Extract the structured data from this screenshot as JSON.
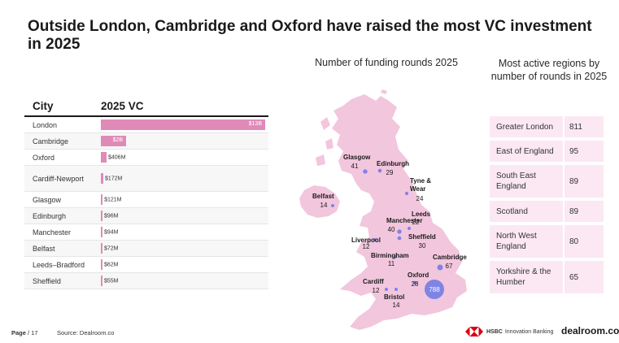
{
  "title": "Outside London, Cambridge and Oxford have raised the most VC investment in 2025",
  "table": {
    "col_city": "City",
    "col_vc": "2025 VC"
  },
  "map_title": "Number of funding rounds 2025",
  "regions_title": "Most active regions by number of rounds in 2025",
  "regions": [
    {
      "name": "Greater London",
      "value": "811"
    },
    {
      "name": "East of England",
      "value": "95"
    },
    {
      "name": "South East England",
      "value": "89"
    },
    {
      "name": "Scotland",
      "value": "89"
    },
    {
      "name": "North West England",
      "value": "80"
    },
    {
      "name": "Yorkshire & the Humber",
      "value": "65"
    }
  ],
  "footer": {
    "page_label": "Page",
    "page_num": "/ 17",
    "source": "Source:  Dealroom.co",
    "hsbc_name": "HSBC",
    "hsbc_sub": "Innovation Banking",
    "brand": "dealroom.co"
  },
  "colors": {
    "bar": "#e08ab8",
    "map_land": "#f2c6dd",
    "bubble": "#6b78e5",
    "region_bg": "#fbe8f3"
  },
  "chart_data": [
    {
      "type": "bar",
      "categories": [
        "London",
        "Cambridge",
        "Oxford",
        "Cardiff-Newport",
        "Glasgow",
        "Edinburgh",
        "Manchester",
        "Belfast",
        "Leeds–Bradford",
        "Sheffield"
      ],
      "values": [
        13000,
        2000,
        406,
        172,
        121,
        96,
        94,
        72,
        62,
        55
      ],
      "labels": [
        "$13B",
        "$2B",
        "$406M",
        "$172M",
        "$121M",
        "$96M",
        "$94M",
        "$72M",
        "$62M",
        "$55M"
      ],
      "unit": "$M",
      "inside_labels": [
        true,
        true,
        false,
        false,
        false,
        false,
        false,
        false,
        false,
        false
      ]
    },
    {
      "type": "scatter",
      "points": [
        {
          "name": "Glasgow",
          "value": 41
        },
        {
          "name": "Edinburgh",
          "value": 29
        },
        {
          "name": "Tyne & Wear",
          "value": 24
        },
        {
          "name": "Belfast",
          "value": 14
        },
        {
          "name": "Leeds",
          "value": 22
        },
        {
          "name": "Manchester",
          "value": 40
        },
        {
          "name": "Liverpool",
          "value": 12
        },
        {
          "name": "Sheffield",
          "value": 30
        },
        {
          "name": "Birmingham",
          "value": 11
        },
        {
          "name": "Cambridge",
          "value": 67
        },
        {
          "name": "Oxford",
          "value": 28
        },
        {
          "name": "Cardiff",
          "value": 12
        },
        {
          "name": "Bristol",
          "value": 14
        },
        {
          "name": "London",
          "value": 788
        }
      ]
    }
  ]
}
